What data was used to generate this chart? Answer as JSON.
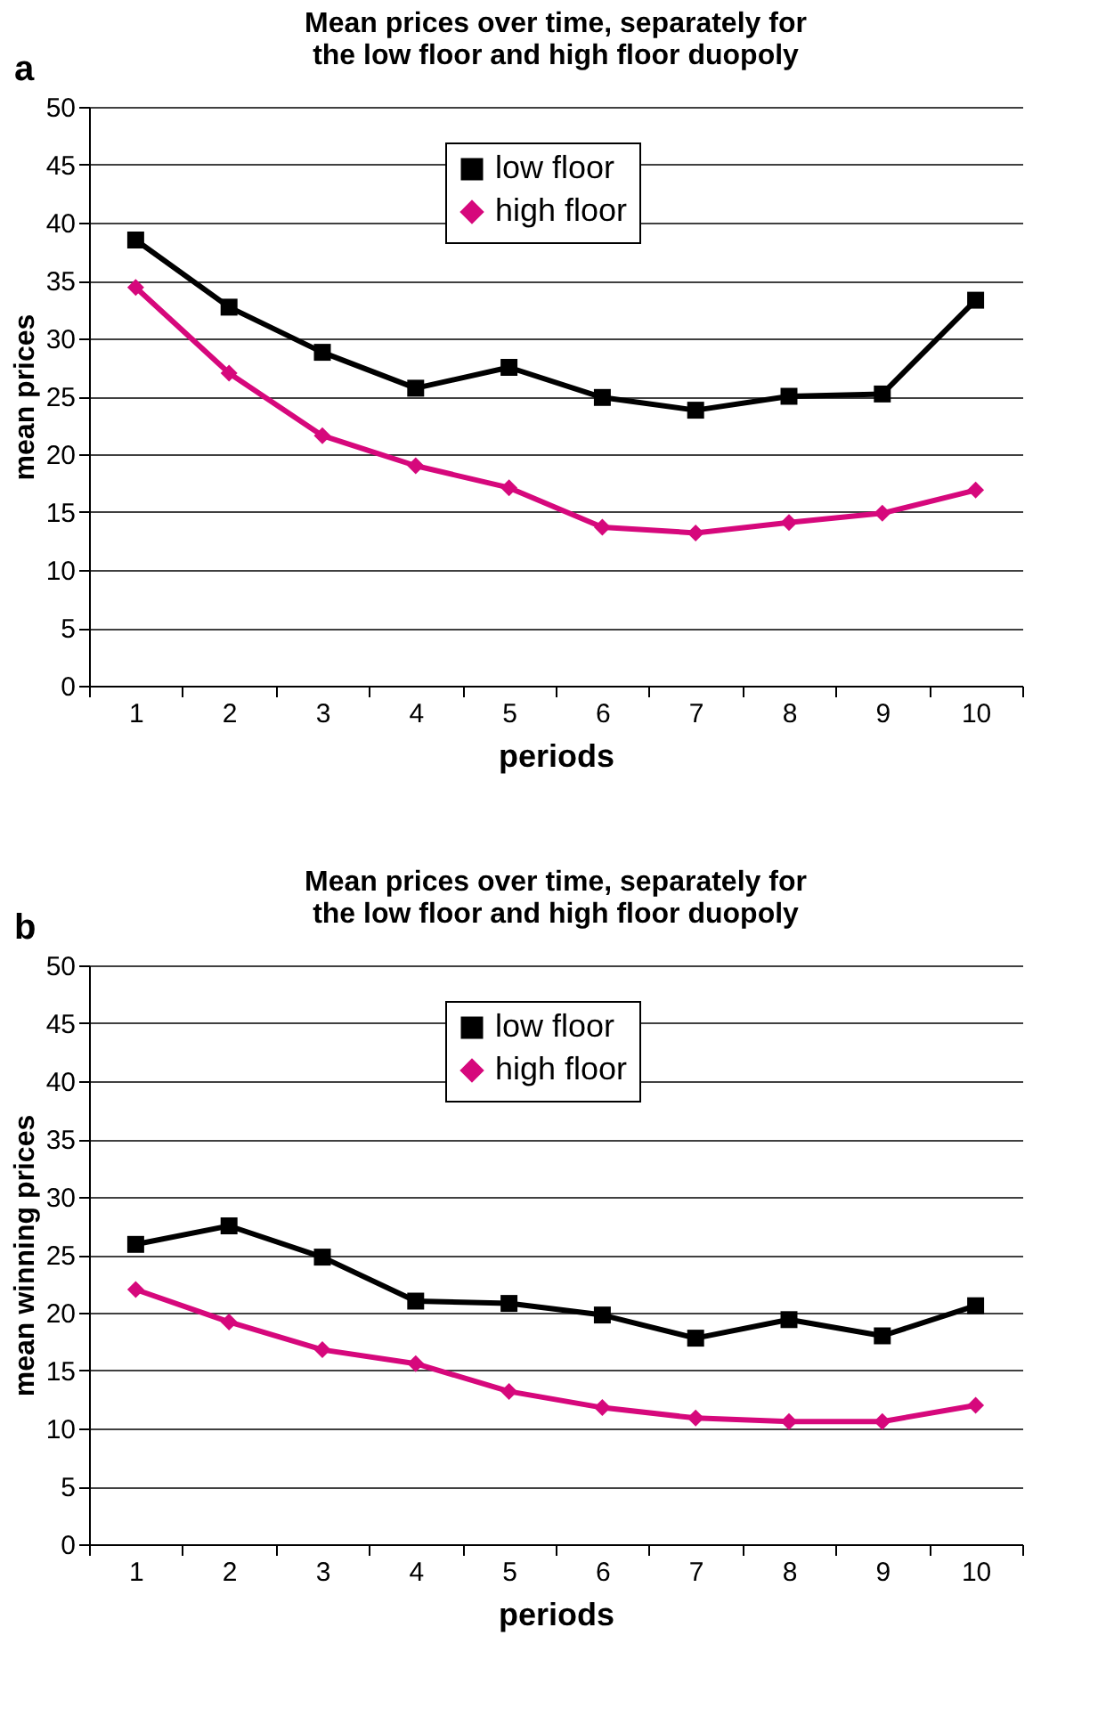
{
  "chart_data": [
    {
      "type": "line",
      "title": "Mean prices over time,  separately for\nthe low floor and high floor duopoly",
      "xlabel": "periods",
      "ylabel": "mean prices",
      "annotations": [
        "a"
      ],
      "categories": [
        "1",
        "2",
        "3",
        "4",
        "5",
        "6",
        "7",
        "8",
        "9",
        "10"
      ],
      "ylim": [
        0,
        50
      ],
      "yticks": [
        0,
        5,
        10,
        15,
        20,
        25,
        30,
        35,
        40,
        45,
        50
      ],
      "grid": "y",
      "legend": "top",
      "line_style": "solid",
      "series": [
        {
          "name": "low floor",
          "color": "#000000",
          "marker": "square",
          "values": [
            38.5,
            32.7,
            28.8,
            25.7,
            27.5,
            24.9,
            23.8,
            25.0,
            25.2,
            33.3
          ]
        },
        {
          "name": "high floor",
          "color": "#d6087c",
          "marker": "diamond",
          "values": [
            34.4,
            27.0,
            21.6,
            19.0,
            17.1,
            13.7,
            13.2,
            14.1,
            14.9,
            16.9
          ]
        }
      ]
    },
    {
      "type": "line",
      "title": "Mean prices over time,  separately for\nthe low floor and high floor duopoly",
      "xlabel": "periods",
      "ylabel": "mean winning prices",
      "annotations": [
        "b"
      ],
      "categories": [
        "1",
        "2",
        "3",
        "4",
        "5",
        "6",
        "7",
        "8",
        "9",
        "10"
      ],
      "ylim": [
        0,
        50
      ],
      "yticks": [
        0,
        5,
        10,
        15,
        20,
        25,
        30,
        35,
        40,
        45,
        50
      ],
      "grid": "y",
      "legend": "top",
      "line_style": "solid",
      "series": [
        {
          "name": "low floor",
          "color": "#000000",
          "marker": "square",
          "values": [
            25.9,
            27.5,
            24.8,
            21.0,
            20.8,
            19.8,
            17.8,
            19.4,
            18.0,
            20.6
          ]
        },
        {
          "name": "high floor",
          "color": "#d6087c",
          "marker": "diamond",
          "values": [
            22.0,
            19.2,
            16.8,
            15.6,
            13.2,
            11.8,
            10.9,
            10.6,
            10.6,
            12.0
          ]
        }
      ]
    }
  ]
}
